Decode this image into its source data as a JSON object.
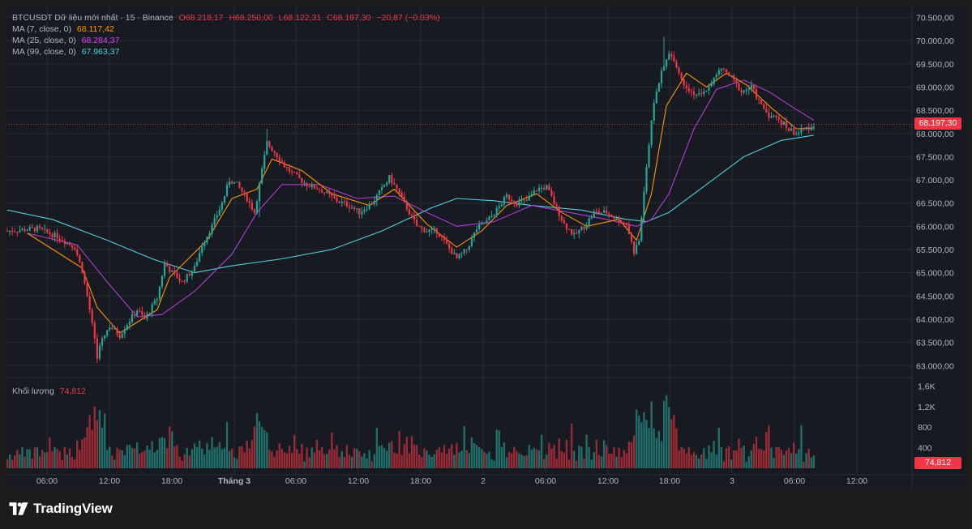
{
  "header": {
    "symbol": "BTCUSDT Dữ liệu mới nhất · 15 · Binance",
    "open": "O68.218,17",
    "high": "H68.250,00",
    "low": "L68.122,31",
    "close": "C68.197,30",
    "change": "−20,87 (−0.03%)"
  },
  "indicators": [
    {
      "label": "MA (7, close, 0)",
      "value": "68.117,42",
      "color": "#ff9800"
    },
    {
      "label": "MA (25, close, 0)",
      "value": "68.284,37",
      "color": "#e040fb"
    },
    {
      "label": "MA (99, close, 0)",
      "value": "67.963,37",
      "color": "#4dd0e1"
    }
  ],
  "volume_legend": {
    "label": "Khối lượng",
    "value": "74,812"
  },
  "last_price_tag": "68.197,30",
  "last_volume_tag": "74,812",
  "footer": {
    "brand": "TradingView"
  },
  "colors": {
    "up": "#26a69a",
    "down": "#f23645",
    "background": "#171a21",
    "grid": "#262a33",
    "axis_text": "#b2b5be"
  },
  "chart_data": {
    "type": "candlestick",
    "price_axis": {
      "ticks": [
        "70.500,00",
        "70.000,00",
        "69.500,00",
        "69.000,00",
        "68.500,00",
        "68.000,00",
        "67.500,00",
        "67.000,00",
        "66.500,00",
        "66.000,00",
        "65.500,00",
        "65.000,00",
        "64.500,00",
        "64.000,00",
        "63.500,00",
        "63.000,00"
      ],
      "range": [
        62850,
        70650
      ]
    },
    "volume_axis": {
      "ticks": [
        "1,6K",
        "1,2K",
        "800",
        "400"
      ],
      "range": [
        0,
        1700
      ]
    },
    "time_axis": {
      "ticks": [
        "06:00",
        "12:00",
        "18:00",
        "Tháng 3",
        "06:00",
        "12:00",
        "18:00",
        "2",
        "06:00",
        "12:00",
        "18:00",
        "3",
        "06:00",
        "12:00"
      ]
    },
    "price_path": [
      [
        0,
        65900
      ],
      [
        12,
        65950
      ],
      [
        20,
        65780
      ],
      [
        27,
        65550
      ],
      [
        30,
        65050
      ],
      [
        33,
        64200
      ],
      [
        36,
        63200
      ],
      [
        38,
        63600
      ],
      [
        41,
        63850
      ],
      [
        45,
        63650
      ],
      [
        48,
        63900
      ],
      [
        52,
        64200
      ],
      [
        55,
        64000
      ],
      [
        60,
        64450
      ],
      [
        63,
        65200
      ],
      [
        66,
        65000
      ],
      [
        70,
        64800
      ],
      [
        75,
        65100
      ],
      [
        78,
        65600
      ],
      [
        82,
        66000
      ],
      [
        86,
        66500
      ],
      [
        89,
        67000
      ],
      [
        92,
        66900
      ],
      [
        96,
        66600
      ],
      [
        99,
        66300
      ],
      [
        102,
        67200
      ],
      [
        104,
        67800
      ],
      [
        107,
        67600
      ],
      [
        111,
        67300
      ],
      [
        115,
        67100
      ],
      [
        120,
        66900
      ],
      [
        125,
        66800
      ],
      [
        128,
        66700
      ],
      [
        132,
        66550
      ],
      [
        137,
        66450
      ],
      [
        141,
        66300
      ],
      [
        146,
        66500
      ],
      [
        150,
        66800
      ],
      [
        153,
        67050
      ],
      [
        156,
        66800
      ],
      [
        160,
        66400
      ],
      [
        164,
        66000
      ],
      [
        168,
        65900
      ],
      [
        172,
        65900
      ],
      [
        176,
        65600
      ],
      [
        180,
        65300
      ],
      [
        184,
        65500
      ],
      [
        188,
        65950
      ],
      [
        192,
        66100
      ],
      [
        196,
        66350
      ],
      [
        200,
        66650
      ],
      [
        204,
        66500
      ],
      [
        208,
        66550
      ],
      [
        212,
        66800
      ],
      [
        216,
        66850
      ],
      [
        219,
        66500
      ],
      [
        223,
        66050
      ],
      [
        227,
        65800
      ],
      [
        231,
        66000
      ],
      [
        235,
        66300
      ],
      [
        240,
        66300
      ],
      [
        244,
        66150
      ],
      [
        248,
        66050
      ],
      [
        251,
        65450
      ],
      [
        253,
        65700
      ],
      [
        256,
        67300
      ],
      [
        259,
        68700
      ],
      [
        262,
        69300
      ],
      [
        265,
        69700
      ],
      [
        267,
        69600
      ],
      [
        270,
        69150
      ],
      [
        274,
        68900
      ],
      [
        278,
        68800
      ],
      [
        282,
        69100
      ],
      [
        286,
        69400
      ],
      [
        290,
        69200
      ],
      [
        294,
        68900
      ],
      [
        298,
        69000
      ],
      [
        302,
        68600
      ],
      [
        305,
        68400
      ],
      [
        309,
        68300
      ],
      [
        313,
        68100
      ],
      [
        316,
        68000
      ],
      [
        320,
        68100
      ],
      [
        323,
        68200
      ]
    ],
    "extremes": [
      [
        36,
        63050
      ],
      [
        101,
        66200
      ],
      [
        104,
        68100
      ],
      [
        263,
        70080
      ],
      [
        251,
        65350
      ]
    ],
    "ma_paths": {
      "ma7": [
        [
          8,
          65850
        ],
        [
          30,
          65100
        ],
        [
          36,
          64250
        ],
        [
          45,
          63700
        ],
        [
          60,
          64200
        ],
        [
          65,
          64900
        ],
        [
          80,
          65700
        ],
        [
          90,
          66600
        ],
        [
          100,
          66800
        ],
        [
          106,
          67450
        ],
        [
          118,
          67200
        ],
        [
          130,
          66700
        ],
        [
          145,
          66450
        ],
        [
          155,
          66800
        ],
        [
          168,
          66050
        ],
        [
          180,
          65550
        ],
        [
          190,
          65900
        ],
        [
          200,
          66450
        ],
        [
          212,
          66700
        ],
        [
          222,
          66300
        ],
        [
          232,
          66000
        ],
        [
          245,
          66150
        ],
        [
          252,
          65700
        ],
        [
          258,
          66700
        ],
        [
          264,
          68600
        ],
        [
          272,
          69300
        ],
        [
          280,
          69000
        ],
        [
          288,
          69300
        ],
        [
          296,
          69050
        ],
        [
          306,
          68550
        ],
        [
          316,
          68100
        ],
        [
          323,
          68117
        ]
      ],
      "ma25": [
        [
          8,
          65850
        ],
        [
          28,
          65600
        ],
        [
          40,
          64800
        ],
        [
          52,
          64050
        ],
        [
          62,
          64100
        ],
        [
          75,
          64600
        ],
        [
          90,
          65400
        ],
        [
          100,
          66300
        ],
        [
          110,
          66900
        ],
        [
          125,
          66900
        ],
        [
          140,
          66600
        ],
        [
          155,
          66650
        ],
        [
          168,
          66300
        ],
        [
          180,
          66000
        ],
        [
          195,
          66100
        ],
        [
          210,
          66450
        ],
        [
          225,
          66300
        ],
        [
          240,
          66150
        ],
        [
          252,
          66000
        ],
        [
          258,
          66150
        ],
        [
          265,
          66700
        ],
        [
          275,
          68100
        ],
        [
          284,
          68950
        ],
        [
          295,
          69150
        ],
        [
          305,
          68900
        ],
        [
          315,
          68550
        ],
        [
          323,
          68284
        ]
      ],
      "ma99": [
        [
          0,
          66350
        ],
        [
          18,
          66150
        ],
        [
          40,
          65700
        ],
        [
          58,
          65300
        ],
        [
          75,
          65000
        ],
        [
          90,
          65150
        ],
        [
          110,
          65300
        ],
        [
          130,
          65500
        ],
        [
          150,
          65900
        ],
        [
          170,
          66400
        ],
        [
          180,
          66600
        ],
        [
          195,
          66550
        ],
        [
          210,
          66450
        ],
        [
          230,
          66350
        ],
        [
          248,
          66150
        ],
        [
          256,
          66100
        ],
        [
          265,
          66300
        ],
        [
          280,
          66900
        ],
        [
          295,
          67500
        ],
        [
          310,
          67850
        ],
        [
          323,
          67963
        ]
      ]
    }
  }
}
